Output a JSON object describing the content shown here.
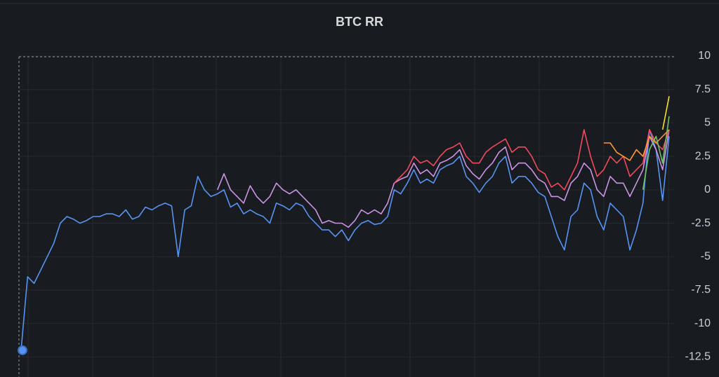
{
  "chart_data": {
    "type": "line",
    "title": "BTC RR",
    "ylim": [
      -14,
      10
    ],
    "yticks": [
      10,
      7.5,
      5,
      2.5,
      0,
      -2.5,
      -5,
      -7.5,
      -10,
      -12.5
    ],
    "grid": true,
    "series": [
      {
        "color": "#5794f2",
        "values": [
          -12,
          -6.5,
          -7,
          -6,
          -5,
          -4,
          -2.5,
          -2,
          -2.2,
          -2.5,
          -2.3,
          -2,
          -2,
          -1.8,
          -1.8,
          -2,
          -1.5,
          -2.2,
          -2,
          -1.3,
          -1.5,
          -1.2,
          -1,
          -1.2,
          -5,
          -1.5,
          -1.2,
          1,
          0,
          -0.5,
          -0.3,
          0,
          -1.3,
          -1,
          -1.8,
          -1.5,
          -1.8,
          -2,
          -2.5,
          -1,
          -1.2,
          -1.5,
          -1,
          -1.2,
          -2,
          -2.5,
          -3,
          -3,
          -3.5,
          -3,
          -3.8,
          -3,
          -2.5,
          -2.3,
          -2.6,
          -2.5,
          -2,
          0,
          -0.3,
          0.5,
          1.5,
          0.5,
          0.8,
          0.5,
          1.5,
          1.8,
          2,
          2.5,
          1,
          0.5,
          -0.2,
          0.5,
          1,
          2,
          2.5,
          0.5,
          1,
          1,
          0.5,
          -0.2,
          -0.5,
          -2,
          -3.5,
          -4.5,
          -2,
          -1.5,
          0.5,
          0,
          -2,
          -3,
          -1,
          -1.5,
          -2,
          -4.5,
          -3,
          -1,
          4.5,
          3,
          -0.8,
          4
        ]
      },
      {
        "color": "#ca95e5",
        "values": [
          null,
          null,
          null,
          null,
          null,
          null,
          null,
          null,
          null,
          null,
          null,
          null,
          null,
          null,
          null,
          null,
          null,
          null,
          null,
          null,
          null,
          null,
          null,
          null,
          null,
          null,
          null,
          null,
          null,
          null,
          0,
          1.2,
          0,
          -0.5,
          -1,
          0.3,
          -0.5,
          -1,
          -0.5,
          0.5,
          0,
          -0.3,
          0,
          -0.5,
          -1,
          -1.5,
          -2.5,
          -2.3,
          -2.5,
          -2.5,
          -2.8,
          -2.3,
          -1.5,
          -1.8,
          -1.5,
          -1.8,
          -1,
          0.5,
          0.8,
          1,
          2,
          1.2,
          1.5,
          1,
          2,
          2.2,
          2.5,
          3,
          1.8,
          1.2,
          0.8,
          1.5,
          2,
          2.8,
          3.2,
          1.5,
          2,
          2,
          1.5,
          0.8,
          0.5,
          -0.5,
          -0.5,
          -0.8,
          0.5,
          1,
          2,
          1.5,
          0,
          -0.5,
          1,
          0.5,
          0.5,
          -0.5,
          0.5,
          1.5,
          4,
          3,
          1.5,
          4.5
        ]
      },
      {
        "color": "#f2495c",
        "values": [
          null,
          null,
          null,
          null,
          null,
          null,
          null,
          null,
          null,
          null,
          null,
          null,
          null,
          null,
          null,
          null,
          null,
          null,
          null,
          null,
          null,
          null,
          null,
          null,
          null,
          null,
          null,
          null,
          null,
          null,
          null,
          null,
          null,
          null,
          null,
          null,
          null,
          null,
          null,
          null,
          null,
          null,
          null,
          null,
          null,
          null,
          null,
          null,
          null,
          null,
          null,
          null,
          null,
          null,
          null,
          null,
          null,
          0.5,
          1,
          1.5,
          2.5,
          2,
          2.2,
          1.8,
          2.5,
          3,
          3.2,
          3.5,
          2.5,
          2,
          2,
          2.8,
          3.2,
          3.5,
          3.8,
          2.8,
          3.2,
          3.2,
          2.5,
          1.5,
          1.2,
          0.2,
          0.5,
          0,
          1,
          2,
          4.5,
          2.5,
          1,
          1.5,
          2.5,
          2,
          2.5,
          1,
          1.5,
          2,
          4.5,
          3.5,
          3,
          4.5
        ]
      },
      {
        "color": "#ff9830",
        "values": [
          null,
          null,
          null,
          null,
          null,
          null,
          null,
          null,
          null,
          null,
          null,
          null,
          null,
          null,
          null,
          null,
          null,
          null,
          null,
          null,
          null,
          null,
          null,
          null,
          null,
          null,
          null,
          null,
          null,
          null,
          null,
          null,
          null,
          null,
          null,
          null,
          null,
          null,
          null,
          null,
          null,
          null,
          null,
          null,
          null,
          null,
          null,
          null,
          null,
          null,
          null,
          null,
          null,
          null,
          null,
          null,
          null,
          null,
          null,
          null,
          null,
          null,
          null,
          null,
          null,
          null,
          null,
          null,
          null,
          null,
          null,
          null,
          null,
          null,
          null,
          null,
          null,
          null,
          null,
          null,
          null,
          null,
          null,
          null,
          null,
          null,
          null,
          null,
          null,
          3.5,
          3.5,
          2.8,
          2.5,
          2.2,
          3,
          2.5,
          4,
          3.5,
          4,
          4.5
        ]
      },
      {
        "color": "#73bf69",
        "values": [
          null,
          null,
          null,
          null,
          null,
          null,
          null,
          null,
          null,
          null,
          null,
          null,
          null,
          null,
          null,
          null,
          null,
          null,
          null,
          null,
          null,
          null,
          null,
          null,
          null,
          null,
          null,
          null,
          null,
          null,
          null,
          null,
          null,
          null,
          null,
          null,
          null,
          null,
          null,
          null,
          null,
          null,
          null,
          null,
          null,
          null,
          null,
          null,
          null,
          null,
          null,
          null,
          null,
          null,
          null,
          null,
          null,
          null,
          null,
          null,
          null,
          null,
          null,
          null,
          null,
          null,
          null,
          null,
          null,
          null,
          null,
          null,
          null,
          null,
          null,
          null,
          null,
          null,
          null,
          null,
          null,
          null,
          null,
          null,
          null,
          null,
          null,
          null,
          null,
          null,
          null,
          null,
          null,
          null,
          null,
          0,
          3,
          4,
          2,
          5.5
        ]
      },
      {
        "color": "#fade2a",
        "values": [
          null,
          null,
          null,
          null,
          null,
          null,
          null,
          null,
          null,
          null,
          null,
          null,
          null,
          null,
          null,
          null,
          null,
          null,
          null,
          null,
          null,
          null,
          null,
          null,
          null,
          null,
          null,
          null,
          null,
          null,
          null,
          null,
          null,
          null,
          null,
          null,
          null,
          null,
          null,
          null,
          null,
          null,
          null,
          null,
          null,
          null,
          null,
          null,
          null,
          null,
          null,
          null,
          null,
          null,
          null,
          null,
          null,
          null,
          null,
          null,
          null,
          null,
          null,
          null,
          null,
          null,
          null,
          null,
          null,
          null,
          null,
          null,
          null,
          null,
          null,
          null,
          null,
          null,
          null,
          null,
          null,
          null,
          null,
          null,
          null,
          null,
          null,
          null,
          null,
          null,
          null,
          null,
          null,
          null,
          null,
          null,
          null,
          null,
          4.5,
          7
        ]
      }
    ]
  }
}
